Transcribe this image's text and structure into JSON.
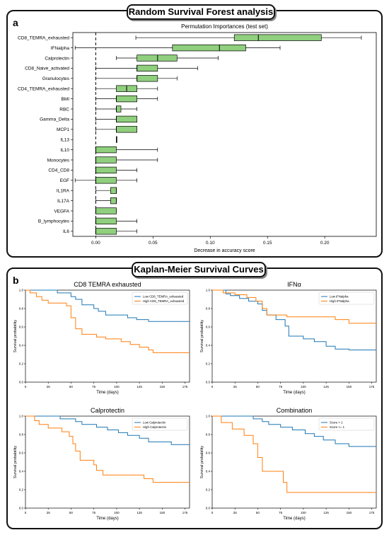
{
  "panel_a": {
    "title": "Random Survival Forest analysis",
    "letter": "a"
  },
  "panel_b": {
    "title": "Kaplan-Meier Survival Curves",
    "letter": "b"
  },
  "chart_data": [
    {
      "type": "boxplot",
      "title": "Permutation Importances (test set)",
      "xlabel": "Decrease in accuracy score",
      "xlim": [
        -0.02,
        0.245
      ],
      "xticks": [
        "0.00",
        "0.05",
        "0.10",
        "0.15",
        "0.20"
      ],
      "reference_line": 0.0,
      "box_color": "#8fcf7d",
      "features": [
        {
          "name": "CD8_TEMRA_exhausted",
          "whisker_low": 0.035,
          "q1": 0.121,
          "median": 0.142,
          "q3": 0.197,
          "whisker_high": 0.232
        },
        {
          "name": "IFNalpha",
          "whisker_low": -0.018,
          "q1": 0.067,
          "median": 0.108,
          "q3": 0.131,
          "whisker_high": 0.161
        },
        {
          "name": "Calprotectin",
          "whisker_low": 0.018,
          "q1": 0.036,
          "median": 0.054,
          "q3": 0.071,
          "whisker_high": 0.107
        },
        {
          "name": "CD8_Naive_activated",
          "whisker_low": 0.0,
          "q1": 0.036,
          "median": 0.036,
          "q3": 0.054,
          "whisker_high": 0.089
        },
        {
          "name": "Granulocytes",
          "whisker_low": 0.0,
          "q1": 0.036,
          "median": 0.036,
          "q3": 0.054,
          "whisker_high": 0.071
        },
        {
          "name": "CD4_TEMRA_exhausted",
          "whisker_low": 0.0,
          "q1": 0.018,
          "median": 0.027,
          "q3": 0.036,
          "whisker_high": 0.054
        },
        {
          "name": "BMI",
          "whisker_low": 0.0,
          "q1": 0.018,
          "median": 0.018,
          "q3": 0.036,
          "whisker_high": 0.054
        },
        {
          "name": "RBC",
          "whisker_low": 0.0,
          "q1": 0.018,
          "median": 0.018,
          "q3": 0.022,
          "whisker_high": 0.036
        },
        {
          "name": "Gamma_Delta",
          "whisker_low": 0.0,
          "q1": 0.018,
          "median": 0.018,
          "q3": 0.036,
          "whisker_high": 0.036
        },
        {
          "name": "MCP1",
          "whisker_low": 0.0,
          "q1": 0.018,
          "median": 0.018,
          "q3": 0.036,
          "whisker_high": 0.036
        },
        {
          "name": "IL13",
          "whisker_low": 0.018,
          "q1": 0.018,
          "median": 0.018,
          "q3": 0.018,
          "whisker_high": 0.018
        },
        {
          "name": "IL10",
          "whisker_low": 0.0,
          "q1": 0.0,
          "median": 0.0,
          "q3": 0.018,
          "whisker_high": 0.054
        },
        {
          "name": "Monocytes",
          "whisker_low": 0.0,
          "q1": 0.0,
          "median": 0.0,
          "q3": 0.018,
          "whisker_high": 0.054
        },
        {
          "name": "CD4_CD8",
          "whisker_low": 0.0,
          "q1": 0.0,
          "median": 0.0,
          "q3": 0.018,
          "whisker_high": 0.036
        },
        {
          "name": "EGF",
          "whisker_low": -0.018,
          "q1": 0.0,
          "median": 0.0,
          "q3": 0.018,
          "whisker_high": 0.036
        },
        {
          "name": "IL1RA",
          "whisker_low": 0.0,
          "q1": 0.013,
          "median": 0.018,
          "q3": 0.018,
          "whisker_high": 0.018
        },
        {
          "name": "IL17A",
          "whisker_low": 0.0,
          "q1": 0.013,
          "median": 0.018,
          "q3": 0.018,
          "whisker_high": 0.018
        },
        {
          "name": "VEGFA",
          "whisker_low": 0.0,
          "q1": 0.0,
          "median": 0.0,
          "q3": 0.018,
          "whisker_high": 0.018
        },
        {
          "name": "B_lymphocytes",
          "whisker_low": 0.0,
          "q1": 0.0,
          "median": 0.0,
          "q3": 0.018,
          "whisker_high": 0.036
        },
        {
          "name": "IL6",
          "whisker_low": 0.0,
          "q1": 0.0,
          "median": 0.0,
          "q3": 0.018,
          "whisker_high": 0.036
        }
      ]
    },
    {
      "type": "line",
      "title": "CD8 TEMRA exhausted",
      "xlabel": "Time (days)",
      "ylabel": "Survival probability",
      "xlim": [
        0,
        180
      ],
      "ylim": [
        0,
        1.0
      ],
      "legend_position": "top-right",
      "xticks": [
        "0",
        "25",
        "50",
        "75",
        "100",
        "125",
        "150",
        "175"
      ],
      "yticks": [
        "0.0",
        "0.2",
        "0.4",
        "0.6",
        "0.8",
        "1.0"
      ],
      "series": [
        {
          "name": "Low CD8_TEMRA_exhausted",
          "color": "#1f77b4",
          "steps": [
            [
              0,
              1.0
            ],
            [
              28,
              1.0
            ],
            [
              35,
              0.97
            ],
            [
              45,
              0.97
            ],
            [
              50,
              0.93
            ],
            [
              55,
              0.9
            ],
            [
              62,
              0.84
            ],
            [
              75,
              0.8
            ],
            [
              80,
              0.77
            ],
            [
              88,
              0.73
            ],
            [
              112,
              0.7
            ],
            [
              122,
              0.68
            ],
            [
              135,
              0.66
            ],
            [
              180,
              0.66
            ]
          ]
        },
        {
          "name": "High CD8_TEMRA_exhausted",
          "color": "#ff7f0e",
          "steps": [
            [
              0,
              1.0
            ],
            [
              5,
              0.97
            ],
            [
              12,
              0.93
            ],
            [
              18,
              0.89
            ],
            [
              25,
              0.86
            ],
            [
              45,
              0.83
            ],
            [
              50,
              0.7
            ],
            [
              55,
              0.58
            ],
            [
              62,
              0.52
            ],
            [
              78,
              0.49
            ],
            [
              88,
              0.47
            ],
            [
              105,
              0.44
            ],
            [
              115,
              0.41
            ],
            [
              125,
              0.38
            ],
            [
              135,
              0.35
            ],
            [
              140,
              0.32
            ],
            [
              180,
              0.32
            ]
          ]
        }
      ]
    },
    {
      "type": "line",
      "title": "IFNα",
      "xlabel": "Time (days)",
      "ylabel": "Survival probability",
      "xlim": [
        0,
        180
      ],
      "ylim": [
        0,
        1.0
      ],
      "legend_position": "top-right",
      "xticks": [
        "0",
        "25",
        "50",
        "75",
        "100",
        "125",
        "150",
        "175"
      ],
      "yticks": [
        "0.0",
        "0.2",
        "0.4",
        "0.6",
        "0.8",
        "1.0"
      ],
      "series": [
        {
          "name": "Low IFNalpha",
          "color": "#1f77b4",
          "steps": [
            [
              0,
              1.0
            ],
            [
              10,
              1.0
            ],
            [
              15,
              0.96
            ],
            [
              20,
              0.94
            ],
            [
              30,
              0.91
            ],
            [
              40,
              0.88
            ],
            [
              50,
              0.85
            ],
            [
              55,
              0.78
            ],
            [
              60,
              0.73
            ],
            [
              70,
              0.68
            ],
            [
              80,
              0.61
            ],
            [
              84,
              0.5
            ],
            [
              100,
              0.47
            ],
            [
              112,
              0.44
            ],
            [
              125,
              0.39
            ],
            [
              135,
              0.36
            ],
            [
              150,
              0.35
            ],
            [
              180,
              0.35
            ]
          ]
        },
        {
          "name": "High IFNalpha",
          "color": "#ff7f0e",
          "steps": [
            [
              0,
              1.0
            ],
            [
              12,
              0.97
            ],
            [
              25,
              0.95
            ],
            [
              38,
              0.92
            ],
            [
              48,
              0.88
            ],
            [
              55,
              0.8
            ],
            [
              60,
              0.73
            ],
            [
              82,
              0.71
            ],
            [
              135,
              0.68
            ],
            [
              150,
              0.64
            ],
            [
              180,
              0.64
            ]
          ]
        }
      ]
    },
    {
      "type": "line",
      "title": "Calprotectin",
      "xlabel": "Time (days)",
      "ylabel": "Survival probability",
      "xlim": [
        0,
        180
      ],
      "ylim": [
        0,
        1.0
      ],
      "legend_position": "top-right",
      "xticks": [
        "0",
        "25",
        "50",
        "75",
        "100",
        "125",
        "150",
        "175"
      ],
      "yticks": [
        "0.0",
        "0.2",
        "0.4",
        "0.6",
        "0.8",
        "1.0"
      ],
      "series": [
        {
          "name": "Low Calprotectin",
          "color": "#1f77b4",
          "steps": [
            [
              0,
              1.0
            ],
            [
              25,
              1.0
            ],
            [
              38,
              0.97
            ],
            [
              55,
              0.94
            ],
            [
              62,
              0.91
            ],
            [
              78,
              0.88
            ],
            [
              90,
              0.85
            ],
            [
              102,
              0.82
            ],
            [
              112,
              0.79
            ],
            [
              125,
              0.76
            ],
            [
              135,
              0.72
            ],
            [
              160,
              0.69
            ],
            [
              180,
              0.69
            ]
          ]
        },
        {
          "name": "High Calprotectin",
          "color": "#ff7f0e",
          "steps": [
            [
              0,
              1.0
            ],
            [
              10,
              0.95
            ],
            [
              15,
              0.91
            ],
            [
              25,
              0.87
            ],
            [
              40,
              0.83
            ],
            [
              48,
              0.78
            ],
            [
              52,
              0.7
            ],
            [
              55,
              0.62
            ],
            [
              60,
              0.52
            ],
            [
              75,
              0.47
            ],
            [
              78,
              0.41
            ],
            [
              85,
              0.36
            ],
            [
              130,
              0.32
            ],
            [
              140,
              0.28
            ],
            [
              180,
              0.28
            ]
          ]
        }
      ]
    },
    {
      "type": "line",
      "title": "Combination",
      "xlabel": "Time (days)",
      "ylabel": "Survival probability",
      "xlim": [
        0,
        180
      ],
      "ylim": [
        0,
        1.0
      ],
      "legend_position": "top-right",
      "xticks": [
        "0",
        "25",
        "50",
        "75",
        "100",
        "125",
        "150",
        "175"
      ],
      "yticks": [
        "0.0",
        "0.2",
        "0.4",
        "0.6",
        "0.8",
        "1.0"
      ],
      "series": [
        {
          "name": "Score > 1",
          "color": "#1f77b4",
          "steps": [
            [
              0,
              1.0
            ],
            [
              38,
              1.0
            ],
            [
              45,
              0.97
            ],
            [
              55,
              0.94
            ],
            [
              62,
              0.91
            ],
            [
              75,
              0.88
            ],
            [
              88,
              0.85
            ],
            [
              102,
              0.81
            ],
            [
              112,
              0.78
            ],
            [
              122,
              0.74
            ],
            [
              135,
              0.7
            ],
            [
              150,
              0.67
            ],
            [
              180,
              0.67
            ]
          ]
        },
        {
          "name": "Score <= 1",
          "color": "#ff7f0e",
          "steps": [
            [
              0,
              1.0
            ],
            [
              10,
              0.93
            ],
            [
              22,
              0.86
            ],
            [
              35,
              0.79
            ],
            [
              45,
              0.7
            ],
            [
              50,
              0.55
            ],
            [
              55,
              0.4
            ],
            [
              78,
              0.28
            ],
            [
              82,
              0.17
            ],
            [
              180,
              0.17
            ]
          ]
        }
      ]
    }
  ]
}
